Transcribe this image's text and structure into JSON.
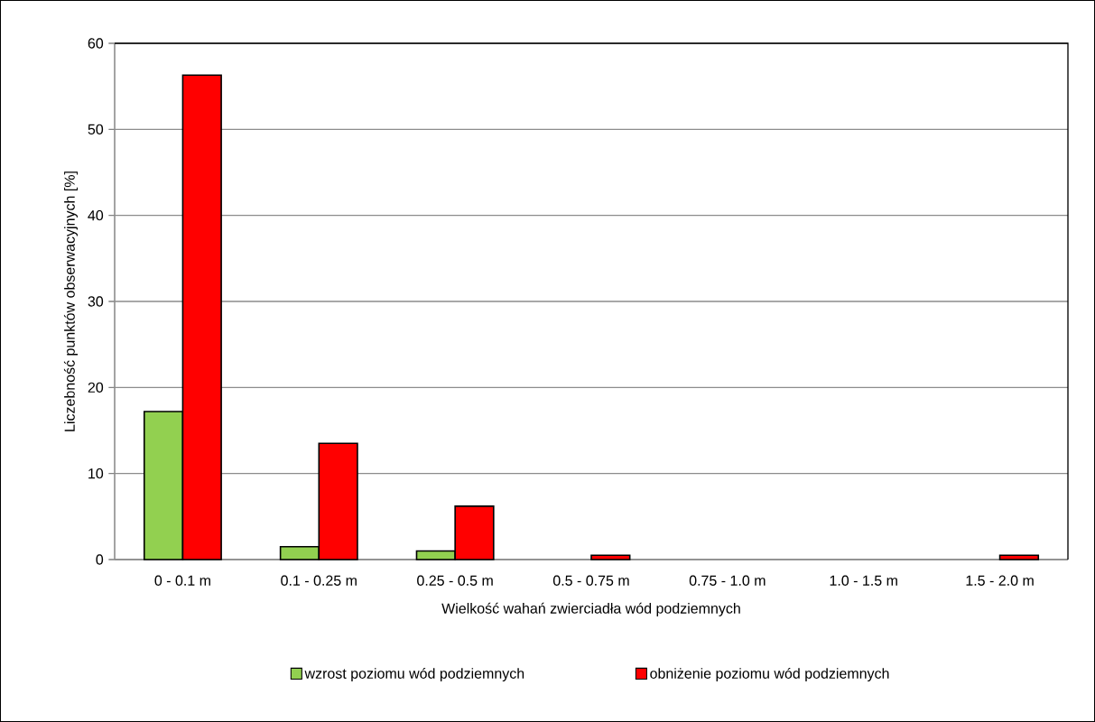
{
  "chart_data": {
    "type": "bar",
    "xlabel": "Wielkość wahań zwierciadła wód podziemnych",
    "ylabel": "Liczebność punktów obserwacyjnych [%]",
    "categories": [
      "0 - 0.1 m",
      "0.1 - 0.25 m",
      "0.25 - 0.5 m",
      "0.5 - 0.75 m",
      "0.75 - 1.0 m",
      "1.0 - 1.5 m",
      "1.5 - 2.0 m"
    ],
    "series": [
      {
        "name": "wzrost poziomu wód podziemnych",
        "color": "#92d050",
        "values": [
          17.2,
          1.5,
          1.0,
          null,
          null,
          null,
          null
        ]
      },
      {
        "name": "obniżenie poziomu wód podziemnych",
        "color": "#ff0000",
        "values": [
          56.3,
          13.5,
          6.2,
          0.5,
          null,
          null,
          0.5
        ]
      }
    ],
    "ylim": [
      0,
      60
    ],
    "yticks": [
      0,
      10,
      20,
      30,
      40,
      50,
      60
    ],
    "grid": "y",
    "legend": "bottom"
  }
}
